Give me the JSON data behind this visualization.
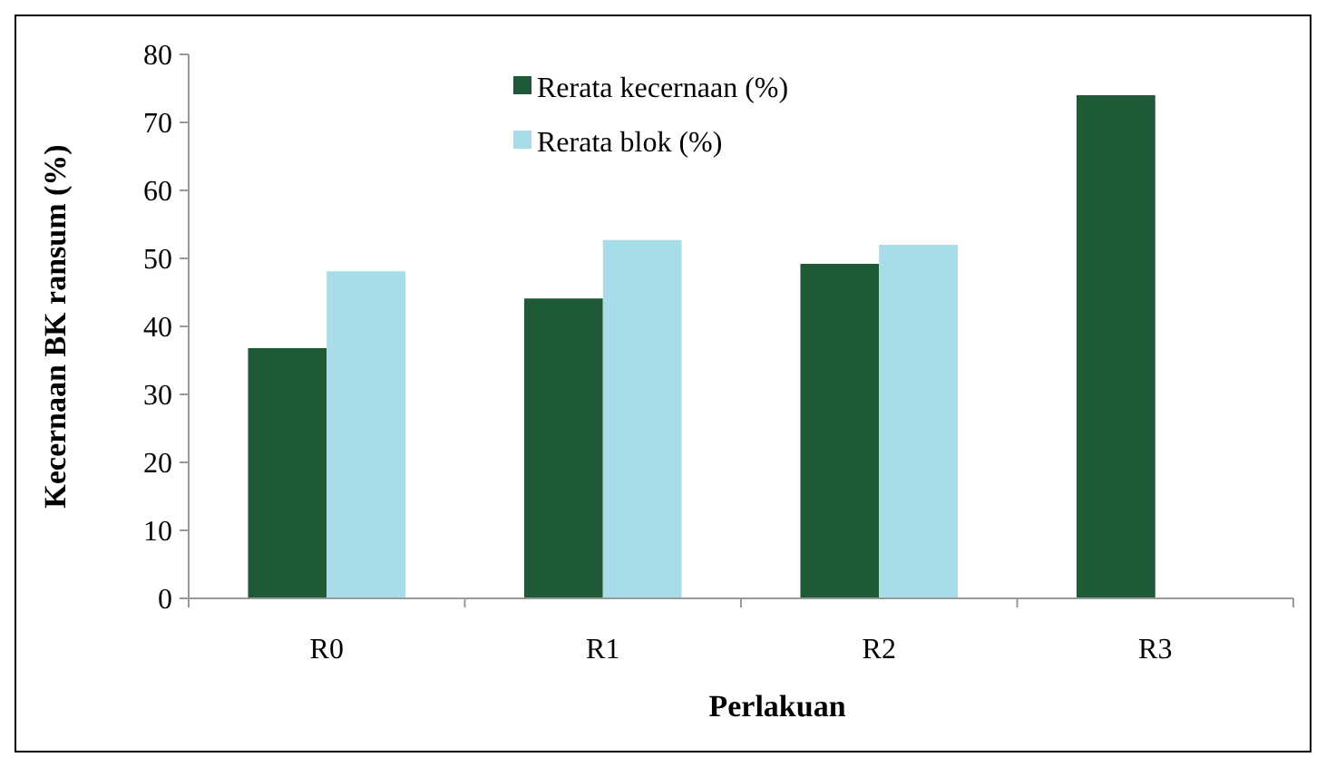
{
  "chart_data": {
    "type": "bar",
    "categories": [
      "R0",
      "R1",
      "R2",
      "R3"
    ],
    "xlabel": "Perlakuan",
    "ylabel": "Kecernaan BK ransum (%)",
    "series": [
      {
        "name": "Rerata kecernaan (%)",
        "color": "#1e5a35",
        "values": [
          36.8,
          44.1,
          49.2,
          74.0
        ]
      },
      {
        "name": "Rerata blok (%)",
        "color": "#a8dce8",
        "values": [
          48.1,
          52.7,
          52.0,
          null
        ]
      }
    ],
    "ylim": [
      0,
      80
    ],
    "yticks": [
      0,
      10,
      20,
      30,
      40,
      50,
      60,
      70,
      80
    ],
    "grid": false,
    "legend": "top"
  }
}
